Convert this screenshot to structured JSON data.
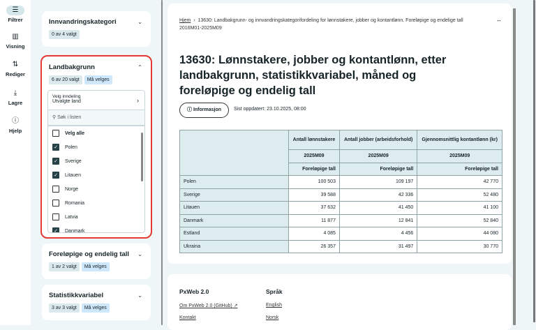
{
  "nav": [
    {
      "label": "Filtrer",
      "icon": "sliders-icon"
    },
    {
      "label": "Visning",
      "icon": "bar-chart-icon"
    },
    {
      "label": "Rediger",
      "icon": "swap-icon"
    },
    {
      "label": "Lagre",
      "icon": "download-icon"
    },
    {
      "label": "Hjelp",
      "icon": "help-icon"
    }
  ],
  "filters": {
    "innvandring": {
      "title": "Innvandringskategori",
      "count": "0 av 4 valgt"
    },
    "land": {
      "title": "Landbakgrunn",
      "count": "6 av 20 valgt",
      "required": "Må velges",
      "inndeling_label": "Velg inndeling",
      "inndeling_value": "Utvalgte land",
      "search_placeholder": "Søk i listen",
      "select_all": "Velg alle",
      "options": [
        {
          "label": "Polen",
          "checked": true
        },
        {
          "label": "Sverige",
          "checked": true
        },
        {
          "label": "Litauen",
          "checked": true
        },
        {
          "label": "Norge",
          "checked": false
        },
        {
          "label": "Romania",
          "checked": false
        },
        {
          "label": "Latvia",
          "checked": false
        },
        {
          "label": "Danmark",
          "checked": true
        }
      ]
    },
    "forelopige": {
      "title": "Foreløpige og endelig tall",
      "count": "1 av 2 valgt",
      "required": "Må velges"
    },
    "statistikk": {
      "title": "Statistikkvariabel",
      "count": "3 av 3 valgt",
      "required": "Må velges"
    }
  },
  "breadcrumb": {
    "home": "Hjem",
    "current": "13630: Landbakgrunn- og innvandringskategorifordeling for lønnstakere, jobber og kontantlønn. Foreløpige og endelige tall 2016M01-2025M09"
  },
  "title": "13630: Lønnstakere, jobber og kontantlønn, etter landbakgrunn, statistikkvariabel, måned og foreløpige og endelig tall",
  "info_button": "Informasjon",
  "updated": "Sist oppdatert: 23.10.2025, 08:00",
  "table": {
    "columns": [
      "Antall lønnstakere",
      "Antall jobber (arbeidsforhold)",
      "Gjennomsnittlig kontantlønn (kr)"
    ],
    "period": "2025M09",
    "status": "Foreløpige tall",
    "rows": [
      [
        "Polen",
        "100 503",
        "109 197",
        "42 770"
      ],
      [
        "Sverige",
        "39 588",
        "42 336",
        "52 480"
      ],
      [
        "Litauen",
        "37 632",
        "41 450",
        "41 100"
      ],
      [
        "Danmark",
        "11 877",
        "12 841",
        "52 840"
      ],
      [
        "Estland",
        "4 085",
        "4 456",
        "44 080"
      ],
      [
        "Ukraina",
        "26 357",
        "31 497",
        "30 770"
      ]
    ]
  },
  "footer": {
    "pxweb_title": "PxWeb 2.0",
    "about": "Om PxWeb 2.0 (GitHub)",
    "contact": "Kontakt",
    "lang_title": "Språk",
    "english": "English",
    "norsk": "Norsk"
  }
}
